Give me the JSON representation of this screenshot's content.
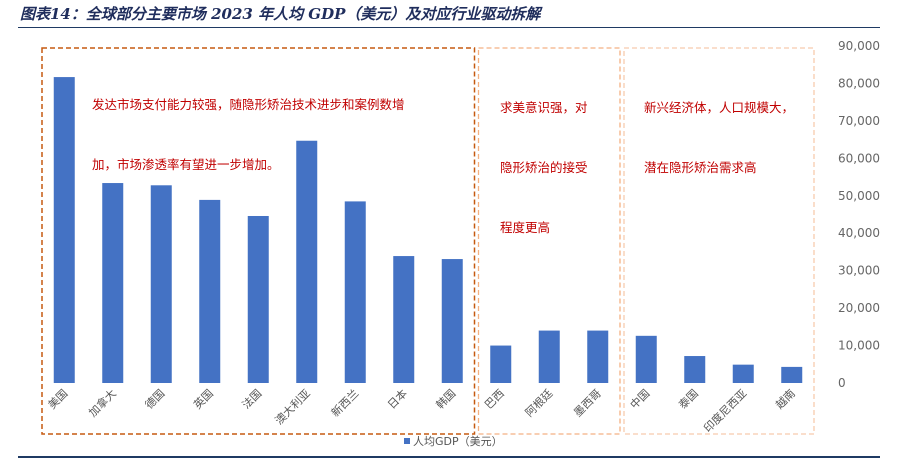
{
  "header": {
    "title": "图表14：全球部分主要市场 2023 年人均 GDP（美元）及对应行业驱动拆解"
  },
  "chart_data": {
    "type": "bar",
    "categories": [
      "美国",
      "加拿大",
      "德国",
      "英国",
      "法国",
      "澳大利亚",
      "新西兰",
      "日本",
      "韩国",
      "巴西",
      "阿根廷",
      "墨西哥",
      "中国",
      "泰国",
      "印度尼西亚",
      "越南"
    ],
    "series": [
      {
        "name": "人均GDP（美元）",
        "values": [
          81700,
          53400,
          52800,
          48900,
          44600,
          64700,
          48500,
          33900,
          33100,
          10000,
          14000,
          14000,
          12600,
          7200,
          4900,
          4300
        ]
      }
    ],
    "ylim": [
      0,
      90000
    ],
    "yticks": [
      "0",
      "10,000",
      "20,000",
      "30,000",
      "40,000",
      "50,000",
      "60,000",
      "70,000",
      "80,000",
      "90,000"
    ],
    "ytick_values": [
      0,
      10000,
      20000,
      30000,
      40000,
      50000,
      60000,
      70000,
      80000,
      90000
    ],
    "grid": false,
    "legend": "bottom",
    "colors": {
      "bar": "#4472c4",
      "box_dark": "#c55a11",
      "box_light": "#f4b183",
      "box_lighter": "#f8cbad",
      "annotation": "#c00000"
    },
    "groups": [
      {
        "from": 0,
        "to": 8,
        "annotation": [
          "发达市场支付能力较强，随隐形矫治技术进步和案例数增",
          "加，市场渗透率有望进一步增加。"
        ]
      },
      {
        "from": 9,
        "to": 11,
        "annotation": [
          "求美意识强，对",
          "隐形矫治的接受",
          "程度更高"
        ]
      },
      {
        "from": 12,
        "to": 15,
        "annotation": [
          "新兴经济体，人口规模大，",
          "潜在隐形矫治需求高"
        ]
      }
    ]
  }
}
